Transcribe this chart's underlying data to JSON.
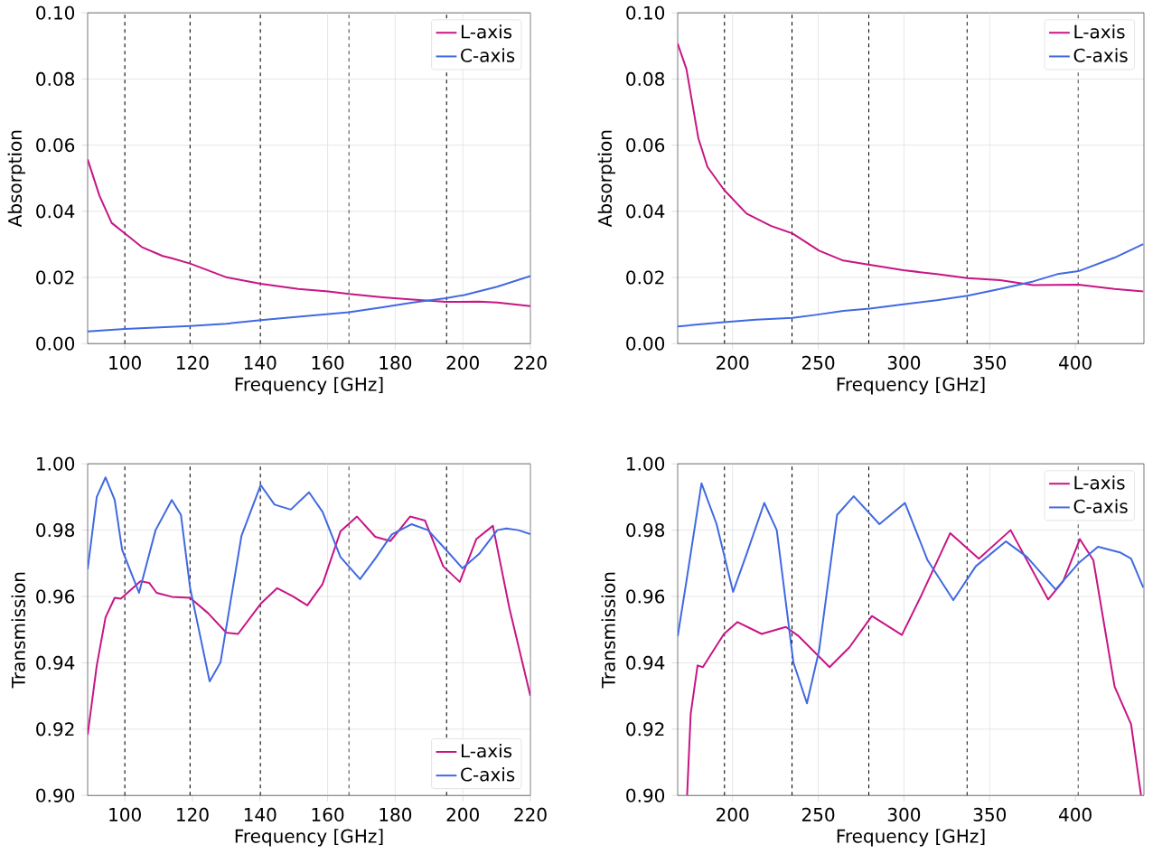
{
  "chart_data": [
    {
      "type": "line",
      "xlabel": "Frequency [GHz]",
      "ylabel": "Absorption",
      "xlim": [
        89,
        220
      ],
      "ylim": [
        0,
        0.1
      ],
      "xticks": [
        100,
        120,
        140,
        160,
        180,
        200,
        220
      ],
      "yticks": [
        {
          "value": 0,
          "label": "0.00"
        },
        0.02,
        0.04,
        0.06,
        0.08,
        {
          "value": 0.1,
          "label": "0.10"
        }
      ],
      "grid": true,
      "legend": "top right",
      "ref_lines": [
        {
          "axis": "x",
          "value": 100,
          "color": "#000000",
          "line_style": "dashed"
        },
        {
          "axis": "x",
          "value": 119.3,
          "color": "#000000",
          "line_style": "dashed"
        },
        {
          "axis": "x",
          "value": 140.1,
          "color": "#000000",
          "line_style": "dashed"
        },
        {
          "axis": "x",
          "value": 166.3,
          "color": "#000000",
          "line_style": "dashed"
        },
        {
          "axis": "x",
          "value": 195.2,
          "color": "#000000",
          "line_style": "dashed"
        }
      ],
      "series": [
        {
          "name": "L-axis",
          "color": "#c71585",
          "x": [
            89,
            92.5,
            96.1,
            100,
            105,
            111.2,
            113.9,
            119.3,
            129.9,
            140.2,
            151.3,
            160.2,
            166.3,
            176.3,
            185.2,
            195,
            204.8,
            210.2,
            220
          ],
          "values": [
            0.0557,
            0.0447,
            0.0365,
            0.0333,
            0.0292,
            0.0265,
            0.0258,
            0.0242,
            0.0201,
            0.0181,
            0.0165,
            0.0158,
            0.015,
            0.014,
            0.0133,
            0.0126,
            0.0127,
            0.0124,
            0.0113
          ]
        },
        {
          "name": "C-axis",
          "color": "#4169e1",
          "x": [
            89,
            100,
            119.3,
            130,
            140.2,
            151.3,
            166.3,
            176.3,
            185.2,
            195,
            200.4,
            210.2,
            220
          ],
          "values": [
            0.0037,
            0.0044,
            0.0053,
            0.006,
            0.0071,
            0.0081,
            0.0095,
            0.011,
            0.0124,
            0.0137,
            0.0147,
            0.0172,
            0.0204
          ]
        }
      ]
    },
    {
      "type": "line",
      "xlabel": "Frequency [GHz]",
      "ylabel": "Absorption",
      "xlim": [
        168,
        440
      ],
      "ylim": [
        0,
        0.1
      ],
      "xticks": [
        200,
        250,
        300,
        350,
        400
      ],
      "yticks": [
        {
          "value": 0,
          "label": "0.00"
        },
        0.02,
        0.04,
        0.06,
        0.08,
        {
          "value": 0.1,
          "label": "0.10"
        }
      ],
      "grid": true,
      "legend": "top right",
      "ref_lines": [
        {
          "axis": "x",
          "value": 195.3,
          "color": "#000000",
          "line_style": "dashed"
        },
        {
          "axis": "x",
          "value": 234.7,
          "color": "#000000",
          "line_style": "dashed"
        },
        {
          "axis": "x",
          "value": 279.5,
          "color": "#000000",
          "line_style": "dashed"
        },
        {
          "axis": "x",
          "value": 336.8,
          "color": "#000000",
          "line_style": "dashed"
        },
        {
          "axis": "x",
          "value": 401.6,
          "color": "#000000",
          "line_style": "dashed"
        }
      ],
      "series": [
        {
          "name": "L-axis",
          "color": "#c71585",
          "x": [
            168,
            173.1,
            180.1,
            185.4,
            195,
            208.2,
            222.3,
            235,
            250.5,
            264.6,
            280,
            299.7,
            319.1,
            337,
            356,
            375.4,
            401.8,
            422.9,
            439.6
          ],
          "values": [
            0.0907,
            0.083,
            0.062,
            0.0534,
            0.0465,
            0.0393,
            0.0356,
            0.0333,
            0.0281,
            0.0251,
            0.0238,
            0.0222,
            0.021,
            0.0198,
            0.0192,
            0.0177,
            0.0178,
            0.0165,
            0.0158
          ]
        },
        {
          "name": "C-axis",
          "color": "#4169e1",
          "x": [
            168,
            195,
            213.5,
            235,
            248.7,
            264.6,
            280,
            299.7,
            319.1,
            337,
            356,
            375.4,
            389.5,
            401.8,
            422.9,
            439.6
          ],
          "values": [
            0.0052,
            0.0065,
            0.0072,
            0.0078,
            0.0087,
            0.0099,
            0.0106,
            0.0119,
            0.0131,
            0.0145,
            0.0165,
            0.0188,
            0.021,
            0.0219,
            0.026,
            0.0301
          ]
        }
      ]
    },
    {
      "type": "line",
      "xlabel": "Frequency [GHz]",
      "ylabel": "Transmission",
      "xlim": [
        89,
        220
      ],
      "ylim": [
        0.9,
        1.0
      ],
      "xticks": [
        100,
        120,
        140,
        160,
        180,
        200,
        220
      ],
      "yticks": [
        {
          "value": 0.9,
          "label": "0.90"
        },
        0.92,
        0.94,
        0.96,
        0.98,
        {
          "value": 1.0,
          "label": "1.00"
        }
      ],
      "grid": true,
      "legend": "bottom right",
      "ref_lines": [
        {
          "axis": "x",
          "value": 100,
          "color": "#000000",
          "line_style": "dashed"
        },
        {
          "axis": "x",
          "value": 119.3,
          "color": "#000000",
          "line_style": "dashed"
        },
        {
          "axis": "x",
          "value": 140.1,
          "color": "#000000",
          "line_style": "dashed"
        },
        {
          "axis": "x",
          "value": 166.3,
          "color": "#000000",
          "line_style": "dashed"
        },
        {
          "axis": "x",
          "value": 195.2,
          "color": "#000000",
          "line_style": "dashed"
        }
      ],
      "series": [
        {
          "name": "L-axis",
          "color": "#c71585",
          "x": [
            89,
            91.7,
            94.3,
            97,
            98.8,
            100.1,
            104.6,
            107.2,
            109.4,
            113.9,
            119.3,
            124.6,
            130,
            133.5,
            140.2,
            145.1,
            149.6,
            154,
            158.5,
            163.8,
            168.7,
            174.1,
            178.6,
            184.4,
            188.8,
            194.2,
            199.1,
            204,
            208.9,
            213.8,
            220
          ],
          "values": [
            0.9183,
            0.9392,
            0.9537,
            0.9596,
            0.9593,
            0.9605,
            0.9646,
            0.9641,
            0.9611,
            0.9599,
            0.9596,
            0.955,
            0.9491,
            0.9487,
            0.9578,
            0.9625,
            0.9601,
            0.9573,
            0.9637,
            0.9796,
            0.9841,
            0.978,
            0.9767,
            0.9841,
            0.9829,
            0.9691,
            0.9644,
            0.9773,
            0.9813,
            0.9564,
            0.93
          ]
        },
        {
          "name": "C-axis",
          "color": "#4169e1",
          "x": [
            89,
            91.7,
            94.3,
            97,
            99.2,
            104.2,
            109.1,
            113.9,
            116.6,
            119.3,
            125.1,
            128.3,
            134.5,
            140.2,
            144.3,
            149.1,
            154.5,
            158.5,
            163.8,
            169.6,
            174.1,
            179,
            184.8,
            189.7,
            195,
            199.9,
            204.8,
            210.2,
            212.9,
            216.4,
            220
          ],
          "values": [
            0.9682,
            0.99,
            0.9959,
            0.9891,
            0.9741,
            0.9611,
            0.98,
            0.9891,
            0.9846,
            0.9627,
            0.9344,
            0.9401,
            0.9782,
            0.9936,
            0.9877,
            0.9862,
            0.9914,
            0.9855,
            0.9719,
            0.9652,
            0.9714,
            0.9787,
            0.9818,
            0.98,
            0.9741,
            0.9685,
            0.9728,
            0.98,
            0.9805,
            0.98,
            0.9788
          ]
        }
      ]
    },
    {
      "type": "line",
      "xlabel": "Frequency [GHz]",
      "ylabel": "Transmission",
      "xlim": [
        168,
        440
      ],
      "ylim": [
        0.9,
        1.0
      ],
      "xticks": [
        200,
        250,
        300,
        350,
        400
      ],
      "yticks": [
        {
          "value": 0.9,
          "label": "0.90"
        },
        0.92,
        0.94,
        0.96,
        0.98,
        {
          "value": 1.0,
          "label": "1.00"
        }
      ],
      "grid": true,
      "legend": "top right",
      "ref_lines": [
        {
          "axis": "x",
          "value": 195.3,
          "color": "#000000",
          "line_style": "dashed"
        },
        {
          "axis": "x",
          "value": 234.7,
          "color": "#000000",
          "line_style": "dashed"
        },
        {
          "axis": "x",
          "value": 279.5,
          "color": "#000000",
          "line_style": "dashed"
        },
        {
          "axis": "x",
          "value": 336.8,
          "color": "#000000",
          "line_style": "dashed"
        },
        {
          "axis": "x",
          "value": 401.6,
          "color": "#000000",
          "line_style": "dashed"
        }
      ],
      "series": [
        {
          "name": "L-axis",
          "color": "#c71585",
          "x": [
            173.5,
            175.6,
            179.6,
            182.7,
            187.1,
            195,
            202.9,
            217,
            231.1,
            238.2,
            256.6,
            268.1,
            281.3,
            298.8,
            310.3,
            327,
            343.7,
            362.2,
            384.1,
            392.9,
            402.6,
            410.5,
            422.9,
            432.5,
            438.3
          ],
          "values": [
            0.9001,
            0.9246,
            0.9392,
            0.9387,
            0.9423,
            0.9487,
            0.9523,
            0.9487,
            0.9508,
            0.9482,
            0.9387,
            0.9446,
            0.9541,
            0.9484,
            0.9605,
            0.9791,
            0.9714,
            0.98,
            0.9591,
            0.9646,
            0.9773,
            0.9709,
            0.9328,
            0.9215,
            0.9001
          ]
        },
        {
          "name": "C-axis",
          "color": "#4169e1",
          "x": [
            168,
            173.1,
            181.9,
            190.7,
            200.3,
            208.2,
            218.5,
            225.8,
            235.5,
            243.4,
            250.5,
            261,
            270.7,
            285.7,
            300.6,
            313.8,
            328.8,
            341.9,
            359.5,
            371.8,
            388.5,
            401.8,
            413.2,
            426.4,
            432.5,
            439.6
          ],
          "values": [
            0.948,
            0.9646,
            0.9941,
            0.9818,
            0.9614,
            0.9728,
            0.9882,
            0.98,
            0.9401,
            0.9278,
            0.9437,
            0.9846,
            0.9902,
            0.9818,
            0.9882,
            0.9709,
            0.9589,
            0.9691,
            0.9766,
            0.9719,
            0.9621,
            0.97,
            0.975,
            0.9732,
            0.9714,
            0.9627
          ]
        }
      ]
    }
  ]
}
